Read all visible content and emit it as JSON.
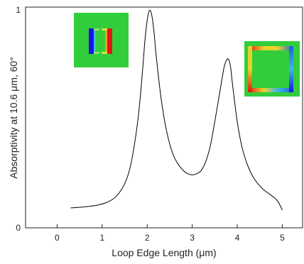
{
  "chart_data": {
    "type": "line",
    "title": "",
    "xlabel": "Loop Edge Length (μm)",
    "ylabel": "Absorptivity at 10.6 μm, 60°",
    "xlim": [
      -0.7,
      5.45
    ],
    "ylim": [
      0,
      1
    ],
    "x_ticks": [
      "0",
      "1",
      "2",
      "3",
      "4",
      "5"
    ],
    "y_ticks": [
      "0",
      "1"
    ],
    "grid": false,
    "legend": "none",
    "series": [
      {
        "color": "#000000",
        "x": [
          0.3,
          0.5,
          0.7,
          0.9,
          1.1,
          1.3,
          1.5,
          1.65,
          1.8,
          1.9,
          1.95,
          2.0,
          2.05,
          2.1,
          2.15,
          2.2,
          2.3,
          2.4,
          2.5,
          2.6,
          2.7,
          2.8,
          2.9,
          3.0,
          3.1,
          3.2,
          3.3,
          3.4,
          3.5,
          3.6,
          3.7,
          3.75,
          3.8,
          3.85,
          3.9,
          4.0,
          4.1,
          4.2,
          4.3,
          4.4,
          4.5,
          4.6,
          4.7,
          4.8,
          4.9,
          5.0
        ],
        "y": [
          0.09,
          0.093,
          0.097,
          0.103,
          0.115,
          0.14,
          0.2,
          0.3,
          0.5,
          0.72,
          0.85,
          0.94,
          0.985,
          0.965,
          0.89,
          0.78,
          0.6,
          0.47,
          0.38,
          0.32,
          0.285,
          0.26,
          0.245,
          0.24,
          0.245,
          0.26,
          0.3,
          0.37,
          0.48,
          0.6,
          0.72,
          0.755,
          0.765,
          0.73,
          0.64,
          0.48,
          0.37,
          0.3,
          0.25,
          0.215,
          0.19,
          0.17,
          0.155,
          0.14,
          0.12,
          0.08
        ]
      }
    ]
  },
  "insets": [
    {
      "background": "#32cd3a",
      "ring": [
        {
          "side": "left",
          "color": "#1515e0"
        },
        {
          "side": "right",
          "color": "#e01515"
        }
      ]
    },
    {
      "background": "#32cd3a",
      "ring": [
        {
          "side": "top",
          "color": "#e8d22a"
        },
        {
          "side": "left",
          "color": "#e8d22a"
        },
        {
          "side": "right",
          "color": "#1565d8"
        },
        {
          "side": "bottom",
          "color": "#1565d8"
        }
      ]
    }
  ]
}
